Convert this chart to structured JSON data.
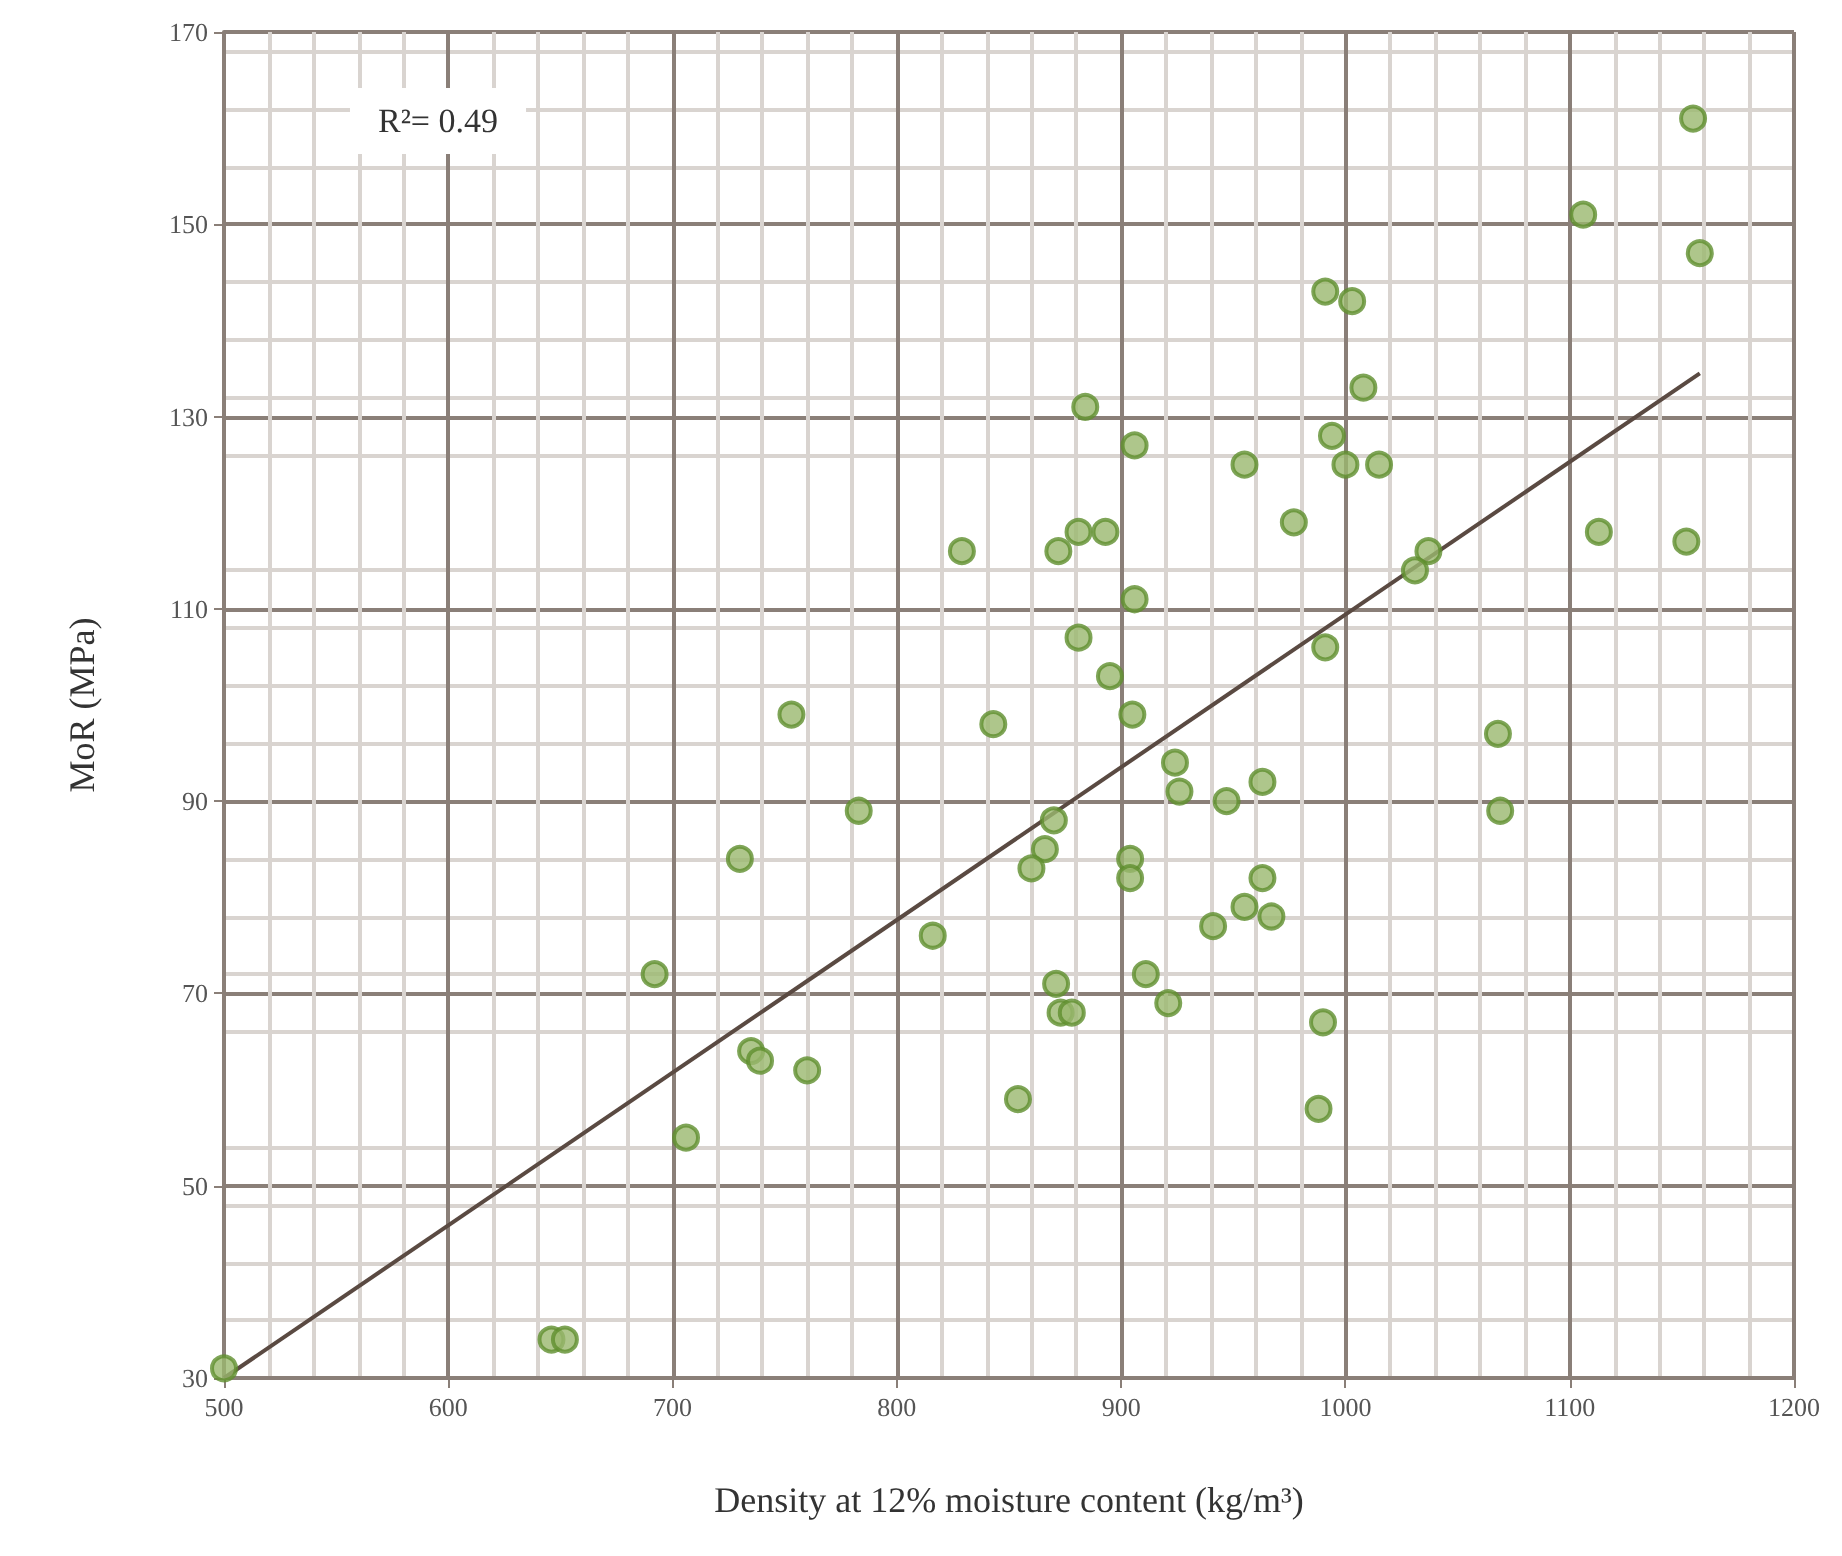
{
  "chart_data": {
    "type": "scatter",
    "xlabel": "Density at 12% moisture content (kg/m³)",
    "ylabel": "MoR (MPa)",
    "annotations": [
      "R²= 0.49"
    ],
    "series": [
      {
        "color": "#9ab86e",
        "marker": "circle",
        "x": [
          500,
          646,
          652,
          692,
          706,
          730,
          735,
          739,
          760,
          753,
          783,
          816,
          829,
          843,
          991,
          1003,
          1008,
          994,
          1000,
          1015,
          955,
          977,
          884,
          906,
          881,
          893,
          872,
          906,
          881,
          895,
          905,
          991,
          1037,
          1031,
          1068,
          924,
          963,
          926,
          947,
          870,
          866,
          860,
          904,
          904,
          963,
          955,
          967,
          941,
          871,
          911,
          921,
          873,
          878,
          990,
          854,
          988,
          1155,
          1106,
          1158,
          1113,
          1152,
          1069
        ],
        "values": [
          31,
          34,
          34,
          72,
          55,
          84,
          64,
          63,
          62,
          99,
          89,
          76,
          116,
          98,
          143,
          142,
          133,
          128,
          125,
          125,
          125,
          119,
          131,
          127,
          118,
          118,
          116,
          111,
          107,
          103,
          99,
          106,
          116,
          114,
          97,
          94,
          92,
          91,
          90,
          88,
          85,
          83,
          84,
          82,
          82,
          79,
          78,
          77,
          71,
          72,
          69,
          68,
          68,
          67,
          59,
          58,
          161,
          151,
          147,
          118,
          117,
          89
        ]
      },
      {
        "type": "line",
        "marker": "none",
        "color": "#5a4a42",
        "x": [
          500,
          1158
        ],
        "values": [
          30,
          134.5
        ]
      }
    ],
    "xlim": [
      500,
      1200
    ],
    "xticks": [
      500,
      600,
      700,
      800,
      900,
      1000,
      1100,
      1200
    ],
    "ylim": [
      30,
      170
    ],
    "yticks": [
      30,
      50,
      70,
      90,
      110,
      130,
      150,
      170
    ],
    "grid": true
  }
}
